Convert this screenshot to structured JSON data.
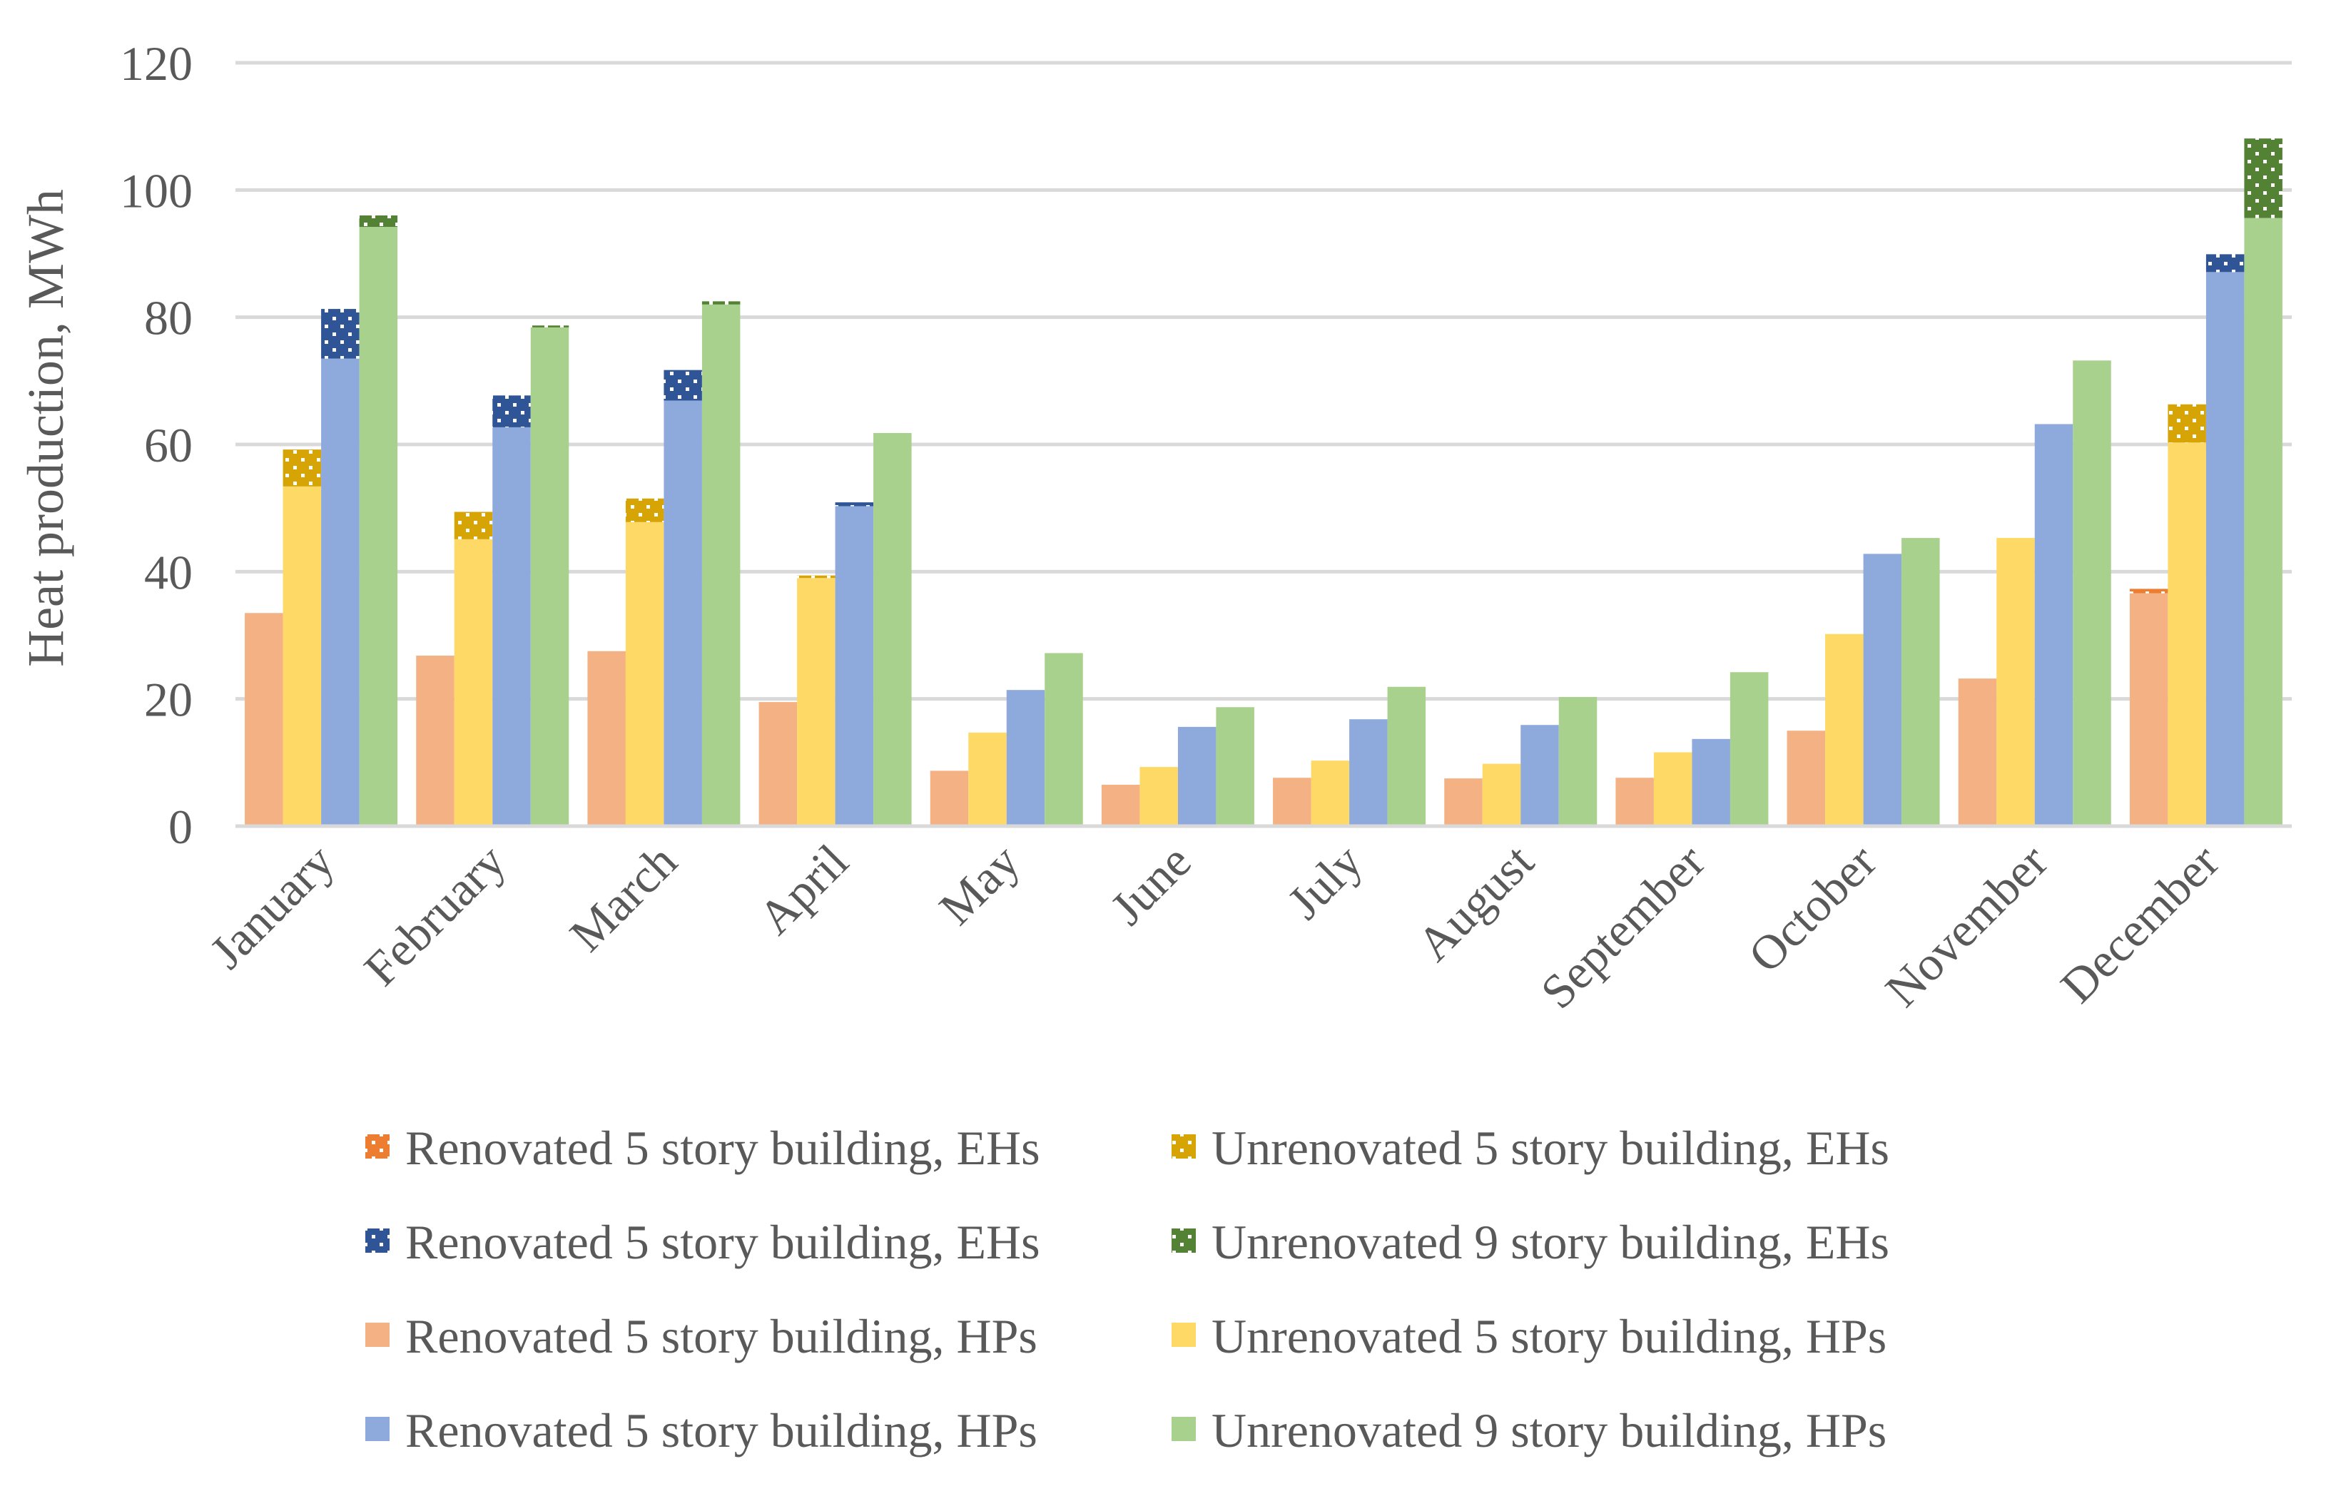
{
  "chart_data": {
    "type": "bar",
    "stacked": true,
    "title": "",
    "xlabel": "",
    "ylabel": "Heat production, MWh",
    "ylim": [
      0,
      120
    ],
    "yticks": [
      0,
      20,
      40,
      60,
      80,
      100,
      120
    ],
    "grid": true,
    "legend_position": "bottom",
    "categories": [
      "January",
      "February",
      "March",
      "April",
      "May",
      "June",
      "July",
      "August",
      "September",
      "October",
      "November",
      "December"
    ],
    "groups": [
      {
        "name": "group-1",
        "series": [
          {
            "name": "Renovated 5 story building, HPs",
            "color": "#F4B183",
            "pattern": "solid",
            "values": [
              33.5,
              26.8,
              27.5,
              19.5,
              8.7,
              6.5,
              7.6,
              7.5,
              7.6,
              15.0,
              23.2,
              36.6
            ]
          },
          {
            "name": "Renovated 5 story building, EHs",
            "color": "#ED7D31",
            "pattern": "dots",
            "values": [
              0,
              0,
              0,
              0,
              0,
              0,
              0,
              0,
              0,
              0,
              0,
              0.7
            ]
          }
        ]
      },
      {
        "name": "group-2",
        "series": [
          {
            "name": "Unrenovated 5 story building, HPs",
            "color": "#FFD966",
            "pattern": "solid",
            "values": [
              53.4,
              45.1,
              47.8,
              39.0,
              14.7,
              9.3,
              10.3,
              9.8,
              11.6,
              30.2,
              45.3,
              60.3
            ]
          },
          {
            "name": "Unrenovated 5 story building, EHs",
            "color": "#D6A404",
            "pattern": "dots",
            "values": [
              5.8,
              4.3,
              3.7,
              0.4,
              0,
              0,
              0,
              0,
              0,
              0,
              0,
              6.0
            ]
          }
        ]
      },
      {
        "name": "group-3",
        "series": [
          {
            "name": "Renovated 5 story building, HPs",
            "color": "#8EA9DB",
            "pattern": "solid",
            "values": [
              73.5,
              62.7,
              66.9,
              50.3,
              21.4,
              15.6,
              16.8,
              15.9,
              13.7,
              42.8,
              63.2,
              87.1
            ]
          },
          {
            "name": "Renovated 5 story building, EHs",
            "color": "#2F5597",
            "pattern": "dots",
            "values": [
              7.8,
              5.0,
              4.8,
              0.6,
              0,
              0,
              0,
              0,
              0,
              0,
              0,
              2.8
            ]
          }
        ]
      },
      {
        "name": "group-4",
        "series": [
          {
            "name": "Unrenovated 9 story building, HPs",
            "color": "#A9D18E",
            "pattern": "solid",
            "values": [
              94.2,
              78.4,
              82.0,
              61.8,
              27.2,
              18.7,
              21.9,
              20.3,
              24.2,
              45.3,
              73.2,
              95.6
            ]
          },
          {
            "name": "Unrenovated 9 story building, EHs",
            "color": "#548235",
            "pattern": "dots",
            "values": [
              1.8,
              0.3,
              0.5,
              0,
              0,
              0,
              0,
              0,
              0,
              0,
              0,
              12.5
            ]
          }
        ]
      }
    ],
    "legend": [
      {
        "label": "Renovated 5 story building, EHs",
        "color": "#ED7D31",
        "pattern": "dots"
      },
      {
        "label": "Unrenovated 5 story building, EHs",
        "color": "#D6A404",
        "pattern": "dots"
      },
      {
        "label": "Renovated 5 story building, EHs",
        "color": "#2F5597",
        "pattern": "dots"
      },
      {
        "label": "Unrenovated 9 story building, EHs",
        "color": "#548235",
        "pattern": "dots"
      },
      {
        "label": "Renovated 5 story building, HPs",
        "color": "#F4B183",
        "pattern": "solid"
      },
      {
        "label": "Unrenovated 5 story building, HPs",
        "color": "#FFD966",
        "pattern": "solid"
      },
      {
        "label": "Renovated 5 story building, HPs",
        "color": "#8EA9DB",
        "pattern": "solid"
      },
      {
        "label": "Unrenovated 9 story building, HPs",
        "color": "#A9D18E",
        "pattern": "solid"
      }
    ]
  }
}
